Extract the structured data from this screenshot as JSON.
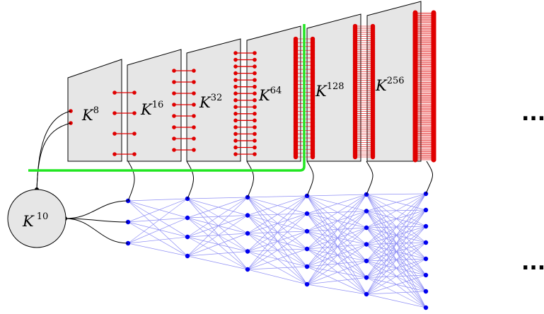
{
  "panels": [
    {
      "base": "K",
      "exp": "8",
      "pairs": 2,
      "pair_shape": "single"
    },
    {
      "base": "K",
      "exp": "16",
      "pairs": 4,
      "pair_shape": "ladder"
    },
    {
      "base": "K",
      "exp": "32",
      "pairs": 8,
      "pair_shape": "ladder"
    },
    {
      "base": "K",
      "exp": "64",
      "pairs": 16,
      "pair_shape": "ladder"
    },
    {
      "base": "K",
      "exp": "128",
      "pairs": 32,
      "pair_shape": "ladder"
    },
    {
      "base": "K",
      "exp": "256",
      "pairs": 64,
      "pair_shape": "ladder"
    },
    {
      "base": "",
      "exp": "",
      "pairs": 128,
      "pair_shape": "ladder"
    }
  ],
  "input_node": {
    "base": "K",
    "exp": "10"
  },
  "network_layers": [
    3,
    4,
    5,
    6,
    7,
    8
  ],
  "ellipsis": "..."
}
